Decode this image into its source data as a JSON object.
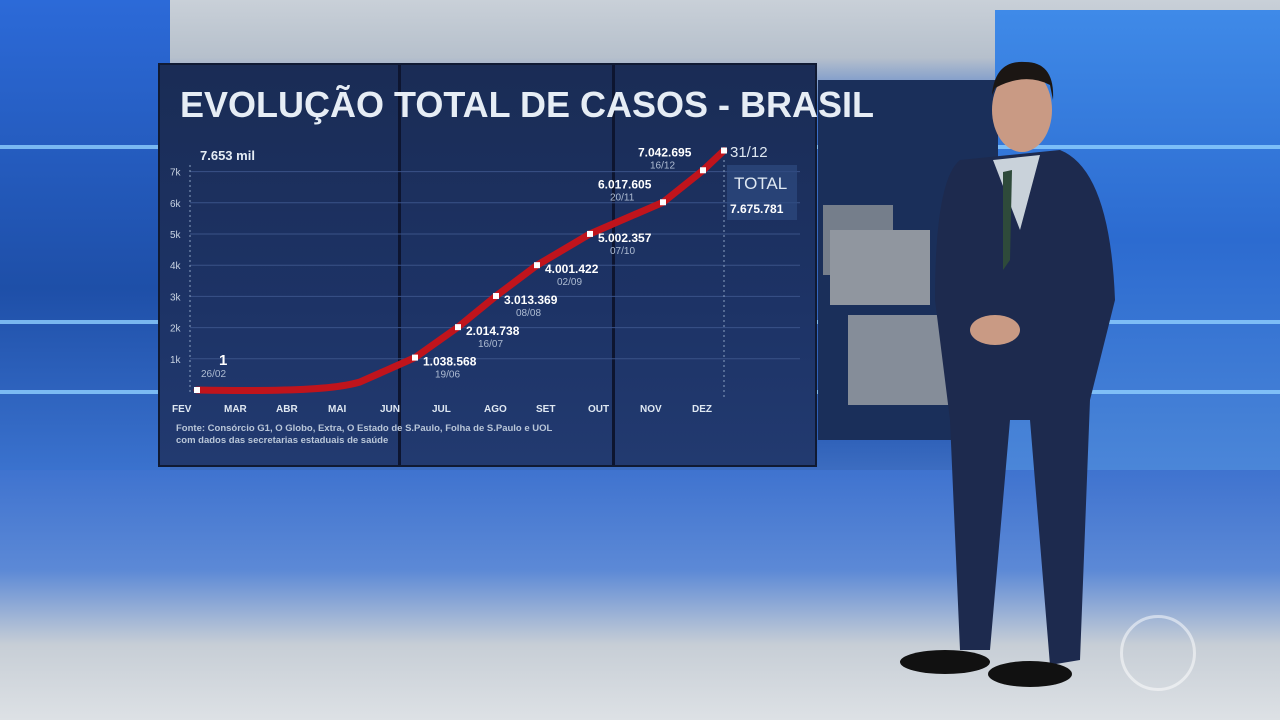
{
  "chart_data": {
    "type": "line",
    "title": "EVOLUÇÃO TOTAL DE CASOS - BRASIL",
    "max_label": "7.653 mil",
    "y_ticks": [
      "1k",
      "2k",
      "3k",
      "4k",
      "5k",
      "6k",
      "7k"
    ],
    "ylim": [
      0,
      7653000
    ],
    "x_ticks": [
      "FEV",
      "MAR",
      "ABR",
      "MAI",
      "JUN",
      "JUL",
      "AGO",
      "SET",
      "OUT",
      "NOV",
      "DEZ"
    ],
    "line_color": "#c0141c",
    "points": [
      {
        "date": "26/02",
        "value": 1,
        "label": "1"
      },
      {
        "date": "19/06",
        "value": 1038568,
        "label": "1.038.568"
      },
      {
        "date": "16/07",
        "value": 2014738,
        "label": "2.014.738"
      },
      {
        "date": "08/08",
        "value": 3013369,
        "label": "3.013.369"
      },
      {
        "date": "02/09",
        "value": 4001422,
        "label": "4.001.422"
      },
      {
        "date": "07/10",
        "value": 5002357,
        "label": "5.002.357"
      },
      {
        "date": "20/11",
        "value": 6017605,
        "label": "6.017.605"
      },
      {
        "date": "16/12",
        "value": 7042695,
        "label": "7.042.695"
      },
      {
        "date": "31/12",
        "value": 7675781,
        "label": ""
      }
    ],
    "total": {
      "label": "TOTAL",
      "date": "31/12",
      "value": "7.675.781"
    },
    "source_line1": "Fonte: Consórcio G1, O Globo, Extra, O Estado de S.Paulo, Folha de S.Paulo e UOL",
    "source_line2": "com dados das secretarias estaduais de saúde"
  }
}
